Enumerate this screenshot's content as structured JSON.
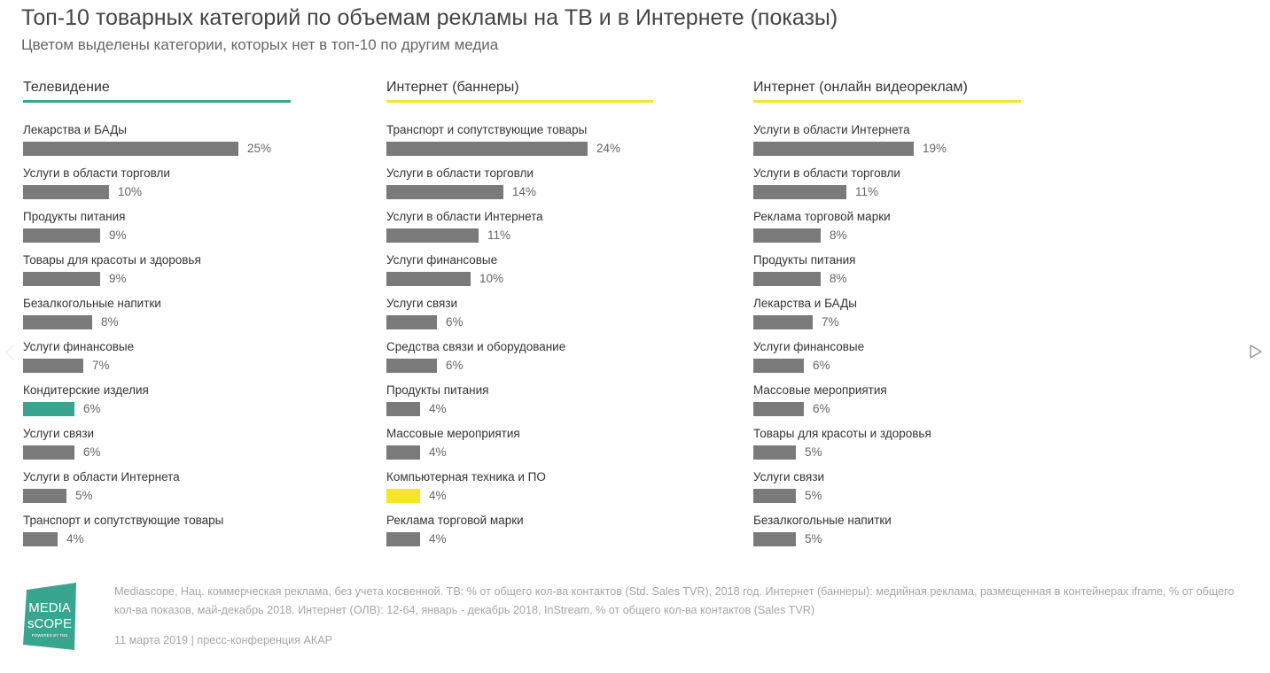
{
  "title": "Топ-10 товарных категорий по объемам рекламы на ТВ и в Интернете (показы)",
  "subtitle": "Цветом выделены категории, которых нет в топ-10 по другим медиа",
  "colors": {
    "bar": "#7a7a7a",
    "tv_accent": "#3aa58f",
    "internet_accent": "#f5e52c",
    "text": "#333333",
    "muted": "#a6a6a6"
  },
  "chart_data": [
    {
      "type": "bar",
      "orientation": "horizontal",
      "title": "Телевидение",
      "accent": "#3aa58f",
      "xlim": [
        0,
        25
      ],
      "categories": [
        "Лекарства и БАДы",
        "Услуги в области торговли",
        "Продукты питания",
        "Товары для красоты и здоровья",
        "Безалкогольные напитки",
        "Услуги финансовые",
        "Кондитерские изделия",
        "Услуги связи",
        "Услуги в области Интернета",
        "Транспорт и сопутствующие товары"
      ],
      "values": [
        25,
        10,
        9,
        9,
        8,
        7,
        6,
        6,
        5,
        4
      ],
      "labels": [
        "25%",
        "10%",
        "9%",
        "9%",
        "8%",
        "7%",
        "6%",
        "6%",
        "5%",
        "4%"
      ],
      "highlighted": [
        false,
        false,
        false,
        false,
        false,
        false,
        true,
        false,
        false,
        false
      ]
    },
    {
      "type": "bar",
      "orientation": "horizontal",
      "title": "Интернет (баннеры)",
      "accent": "#f5e52c",
      "xlim": [
        0,
        24
      ],
      "categories": [
        "Транспорт и сопутствующие товары",
        "Услуги в области торговли",
        "Услуги в области Интернета",
        "Услуги финансовые",
        "Услуги связи",
        "Средства связи и оборудование",
        "Продукты питания",
        "Массовые мероприятия",
        "Компьютерная техника и ПО",
        "Реклама торговой марки"
      ],
      "values": [
        24,
        14,
        11,
        10,
        6,
        6,
        4,
        4,
        4,
        4
      ],
      "labels": [
        "24%",
        "14%",
        "11%",
        "10%",
        "6%",
        "6%",
        "4%",
        "4%",
        "4%",
        "4%"
      ],
      "highlighted": [
        false,
        false,
        false,
        false,
        false,
        false,
        false,
        false,
        true,
        false
      ]
    },
    {
      "type": "bar",
      "orientation": "horizontal",
      "title": "Интернет (онлайн видеореклам)",
      "accent": "#f5e52c",
      "xlim": [
        0,
        19
      ],
      "categories": [
        "Услуги в области Интернета",
        "Услуги в области торговли",
        "Реклама торговой марки",
        "Продукты питания",
        "Лекарства и БАДы",
        "Услуги финансовые",
        "Массовые мероприятия",
        "Товары для красоты и здоровья",
        "Услуги связи",
        "Безалкогольные напитки"
      ],
      "values": [
        19,
        11,
        8,
        8,
        7,
        6,
        6,
        5,
        5,
        5
      ],
      "labels": [
        "19%",
        "11%",
        "8%",
        "8%",
        "7%",
        "6%",
        "6%",
        "5%",
        "5%",
        "5%"
      ],
      "highlighted": [
        false,
        false,
        false,
        false,
        false,
        false,
        false,
        false,
        false,
        false
      ]
    }
  ],
  "footer": {
    "logo_text": [
      "MEDIA",
      "sCOPE"
    ],
    "logo_tagline": "POWERED BY TNS",
    "logo_color": "#3aa58f",
    "source": "Mediascope, Нац. коммерческая реклама, без учета косвенной. ТВ: % от общего кол-ва контактов (Std. Sales TVR), 2018 год. Интернет (баннеры): медийная реклама, размещенная в контейнерах iframe, % от общего кол-ва показов, май-декабрь 2018. Интернет (ОЛВ): 12-64, январь - декабрь 2018, InStream, % от общего кол-ва контактов (Sales TVR)",
    "date": "11 марта 2019 | пресс-конференция АКАР"
  },
  "nav": {
    "prev_icon": "chevron-left-icon",
    "next_icon": "play-right-icon"
  }
}
